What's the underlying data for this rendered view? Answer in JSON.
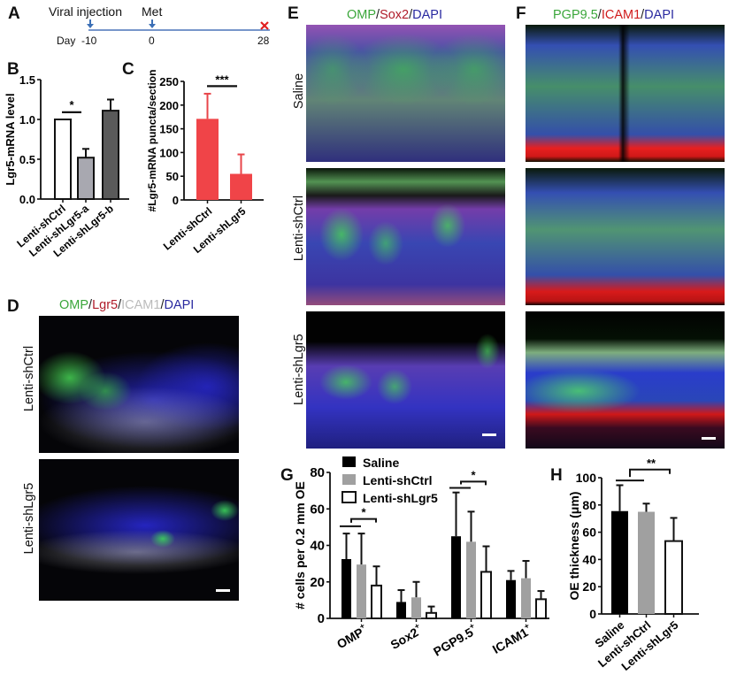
{
  "panels": {
    "A": {
      "label": "A",
      "events": [
        {
          "label": "Viral injection",
          "day": "-10",
          "marker": "arrow-down",
          "color": "#3b6fb6"
        },
        {
          "label": "Met",
          "day": "0",
          "marker": "arrow-down",
          "color": "#3b6fb6"
        },
        {
          "label": "",
          "day": "28",
          "marker": "x",
          "color": "#e02020"
        }
      ],
      "day_label": "Day",
      "line_color": "#4a74b8"
    },
    "B": {
      "label": "B"
    },
    "C": {
      "label": "C"
    },
    "D": {
      "label": "D",
      "stain": [
        {
          "text": "OMP",
          "color": "#3aa63a"
        },
        {
          "text": "/",
          "color": "#222"
        },
        {
          "text": "Lgr5",
          "color": "#b01c2a"
        },
        {
          "text": "/",
          "color": "#222"
        },
        {
          "text": "ICAM1",
          "color": "#bbbbbb"
        },
        {
          "text": "/",
          "color": "#222"
        },
        {
          "text": "DAPI",
          "color": "#2a2aa0"
        }
      ],
      "rows": [
        "Lenti-shCtrl",
        "Lenti-shLgr5"
      ]
    },
    "E": {
      "label": "E",
      "stain": [
        {
          "text": "OMP",
          "color": "#3aa63a"
        },
        {
          "text": "/",
          "color": "#222"
        },
        {
          "text": "Sox2",
          "color": "#b01c2a"
        },
        {
          "text": "/",
          "color": "#222"
        },
        {
          "text": "DAPI",
          "color": "#2a2aa0"
        }
      ],
      "rows": [
        "Saline",
        "Lenti-shCtrl",
        "Lenti-shLgr5"
      ]
    },
    "F": {
      "label": "F",
      "stain": [
        {
          "text": "PGP9.5",
          "color": "#3aa63a"
        },
        {
          "text": "/",
          "color": "#222"
        },
        {
          "text": "ICAM1",
          "color": "#d01c1c"
        },
        {
          "text": "/",
          "color": "#222"
        },
        {
          "text": "DAPI",
          "color": "#2a2aa0"
        }
      ]
    },
    "G": {
      "label": "G"
    },
    "H": {
      "label": "H"
    }
  },
  "chart_data": [
    {
      "panel": "B",
      "type": "bar",
      "title": "",
      "xlabel": "",
      "ylabel": "Lgr5-mRNA level",
      "ylim": [
        0,
        1.5
      ],
      "yticks": [
        "0.0",
        "0.5",
        "1.0",
        "1.5"
      ],
      "categories": [
        "Lenti-shCtrl",
        "Lenti-shLgr5-a",
        "Lenti-shLgr5-b"
      ],
      "values": [
        1.0,
        0.52,
        1.11
      ],
      "errors": [
        0,
        0.11,
        0.14
      ],
      "colors": [
        "#ffffff",
        "#a8a8b0",
        "#5a5a5a"
      ],
      "grid": false,
      "significance": [
        {
          "between": [
            "Lenti-shCtrl",
            "Lenti-shLgr5-a"
          ],
          "text": "*"
        }
      ]
    },
    {
      "panel": "C",
      "type": "bar",
      "title": "",
      "xlabel": "",
      "ylabel": "#Lgr5-mRNA puncta/section",
      "ylim": [
        0,
        250
      ],
      "yticks": [
        "0",
        "50",
        "100",
        "150",
        "200",
        "250"
      ],
      "categories": [
        "Lenti-shCtrl",
        "Lenti-shLgr5"
      ],
      "values": [
        171,
        55
      ],
      "errors": [
        53,
        41
      ],
      "colors": [
        "#f04448",
        "#f04448"
      ],
      "grid": false,
      "significance": [
        {
          "between": [
            "Lenti-shCtrl",
            "Lenti-shLgr5"
          ],
          "text": "***"
        }
      ]
    },
    {
      "panel": "G",
      "type": "bar",
      "title": "",
      "xlabel": "",
      "ylabel": "# cells per 0.2 mm OE",
      "ylim": [
        0,
        80
      ],
      "yticks": [
        "0",
        "20",
        "40",
        "60",
        "80"
      ],
      "categories": [
        "OMP+",
        "Sox2+",
        "PGP9.5+",
        "ICAM1+"
      ],
      "category_labels": [
        {
          "base": "OMP",
          "sup": "+"
        },
        {
          "base": "Sox2",
          "sup": "+"
        },
        {
          "base": "PGP9.5",
          "sup": "+"
        },
        {
          "base": "ICAM1",
          "sup": "+"
        }
      ],
      "series": [
        {
          "name": "Saline",
          "color": "#000000",
          "values": [
            32.5,
            9,
            45,
            21
          ],
          "errors": [
            14,
            6.5,
            24,
            5
          ]
        },
        {
          "name": "Lenti-shCtrl",
          "color": "#a0a0a0",
          "values": [
            29.5,
            11.5,
            42,
            22
          ],
          "errors": [
            17,
            8.5,
            16.5,
            9.5
          ]
        },
        {
          "name": "Lenti-shLgr5",
          "color": "#ffffff",
          "values": [
            18,
            3,
            25.5,
            10.5
          ],
          "errors": [
            10.5,
            3.5,
            14,
            4.5
          ]
        }
      ],
      "legend_position": "top-left",
      "grid": false,
      "significance": [
        {
          "category": "OMP+",
          "between": [
            "Saline+Lenti-shCtrl",
            "Lenti-shLgr5"
          ],
          "text": "*"
        },
        {
          "category": "PGP9.5+",
          "between": [
            "Saline+Lenti-shCtrl",
            "Lenti-shLgr5"
          ],
          "text": "*"
        }
      ]
    },
    {
      "panel": "H",
      "type": "bar",
      "title": "",
      "xlabel": "",
      "ylabel": "OE thickness (μm)",
      "ylim": [
        0,
        100
      ],
      "yticks": [
        "0",
        "20",
        "40",
        "60",
        "80",
        "100"
      ],
      "categories": [
        "Saline",
        "Lenti-shCtrl",
        "Lenti-shLgr5"
      ],
      "values": [
        75.5,
        75,
        53.5
      ],
      "errors": [
        19,
        6,
        17
      ],
      "colors": [
        "#000000",
        "#a0a0a0",
        "#ffffff"
      ],
      "grid": false,
      "significance": [
        {
          "between": [
            "Saline+Lenti-shCtrl",
            "Lenti-shLgr5"
          ],
          "text": "**"
        }
      ]
    }
  ]
}
